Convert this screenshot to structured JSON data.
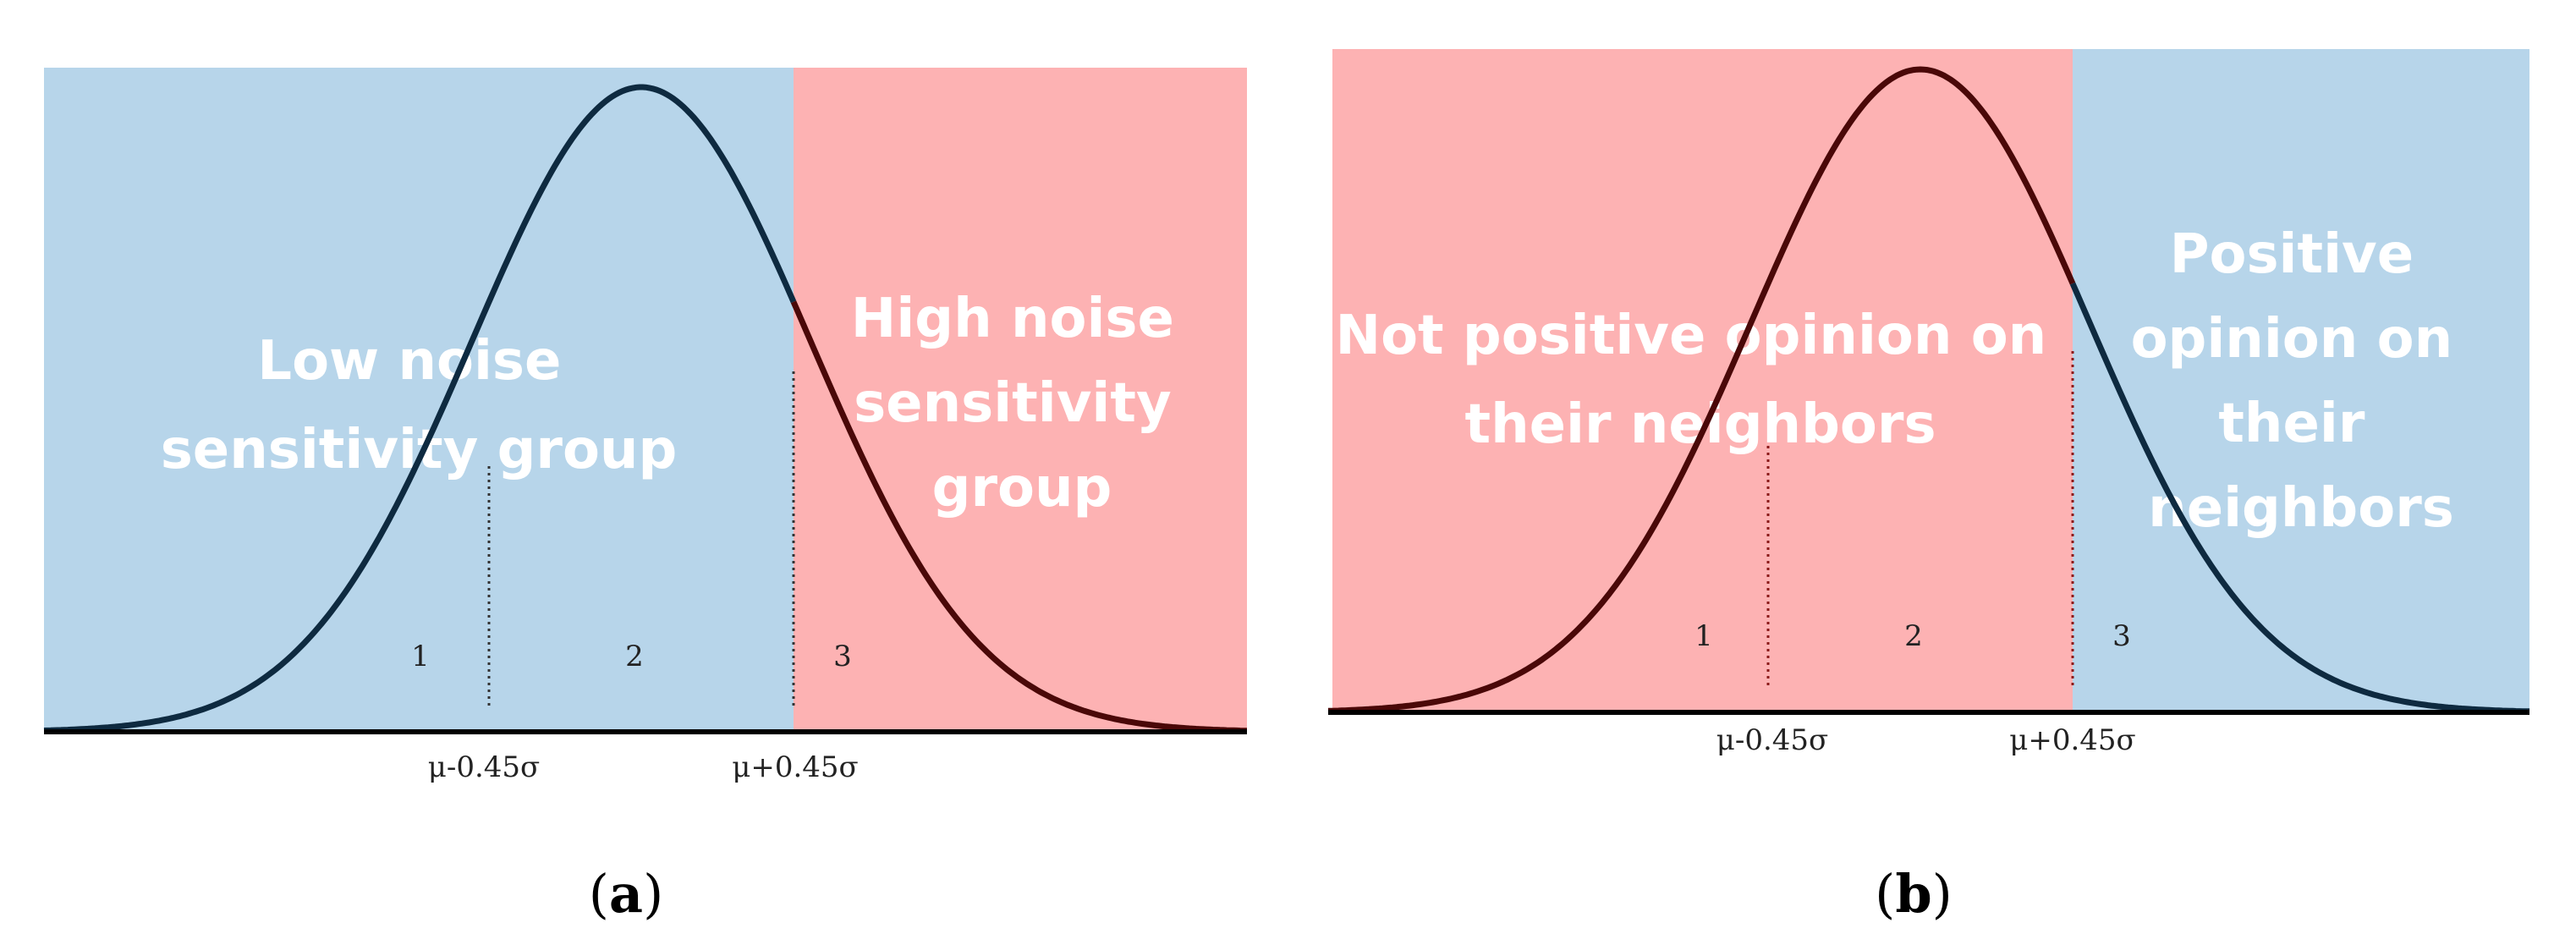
{
  "panels": [
    {
      "caption_letter": "a",
      "regions": [
        {
          "name": "low",
          "color": "#b7d5ea"
        },
        {
          "name": "high",
          "color": "#fdb2b3"
        }
      ],
      "region_labels": [
        {
          "lines": [
            "Low noise",
            "sensitivity group"
          ]
        },
        {
          "lines": [
            "High noise",
            "sensitivity",
            "group"
          ]
        }
      ],
      "segment_numbers": [
        {
          "text": "1",
          "color": "#333333"
        },
        {
          "text": "2",
          "color": "#333333"
        },
        {
          "text": "3",
          "color": "#8b1a1a"
        }
      ],
      "boundary_ticks": [
        "μ-0.45σ",
        "μ+0.45σ"
      ],
      "curve_colors": {
        "left": "#0e2a40",
        "right": "#4a0808"
      }
    },
    {
      "caption_letter": "b",
      "regions": [
        {
          "name": "not-positive",
          "color": "#fdb2b3"
        },
        {
          "name": "positive",
          "color": "#b7d5ea"
        }
      ],
      "region_labels": [
        {
          "lines": [
            "Not positive opinion on",
            "their neighbors"
          ]
        },
        {
          "lines": [
            "Positive",
            "opinion on",
            "their",
            "neighbors"
          ]
        }
      ],
      "segment_numbers": [
        {
          "text": "1",
          "color": "#8b1a1a"
        },
        {
          "text": "2",
          "color": "#8b1a1a"
        },
        {
          "text": "3",
          "color": "#333333"
        }
      ],
      "boundary_ticks": [
        "μ-0.45σ",
        "μ+0.45σ"
      ],
      "curve_colors": {
        "left": "#4a0808",
        "right": "#0e2a40"
      }
    }
  ]
}
